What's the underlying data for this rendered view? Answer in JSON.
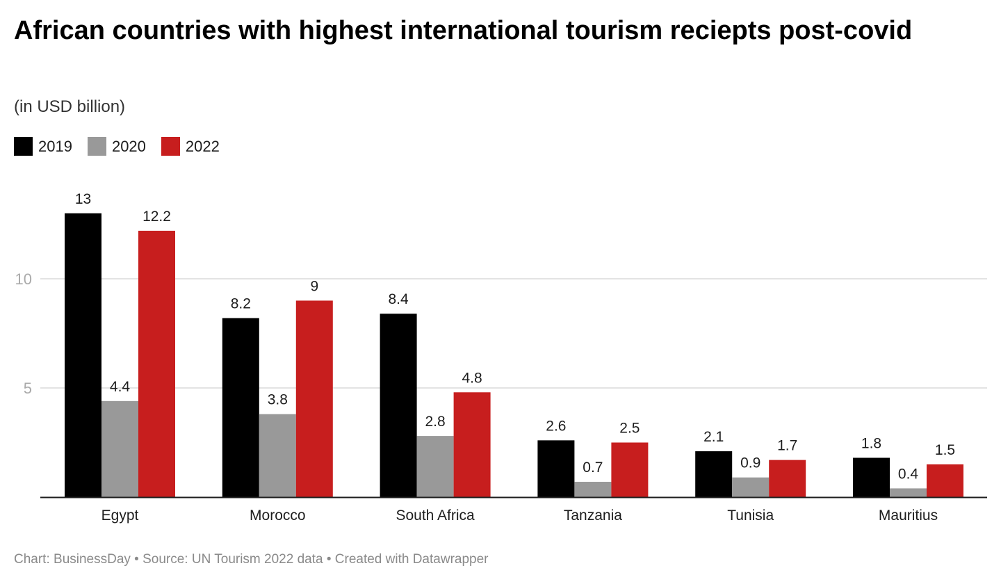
{
  "chart_data": {
    "type": "bar",
    "title": "African countries with highest international tourism reciepts post-covid",
    "subtitle": "(in USD billion)",
    "categories": [
      "Egypt",
      "Morocco",
      "South Africa",
      "Tanzania",
      "Tunisia",
      "Mauritius"
    ],
    "series": [
      {
        "name": "2019",
        "color": "#000000",
        "values": [
          13,
          8.2,
          8.4,
          2.6,
          2.1,
          1.8
        ]
      },
      {
        "name": "2020",
        "color": "#999999",
        "values": [
          4.4,
          3.8,
          2.8,
          0.7,
          0.9,
          0.4
        ]
      },
      {
        "name": "2022",
        "color": "#c71e1e",
        "values": [
          12.2,
          9,
          4.8,
          2.5,
          1.7,
          1.5
        ]
      }
    ],
    "yticks": [
      5,
      10
    ],
    "ylim": [
      0,
      13
    ],
    "grid": true,
    "legend": "top-left",
    "xlabel": "",
    "ylabel": ""
  },
  "footer": "Chart: BusinessDay • Source: UN Tourism 2022 data • Created with Datawrapper"
}
